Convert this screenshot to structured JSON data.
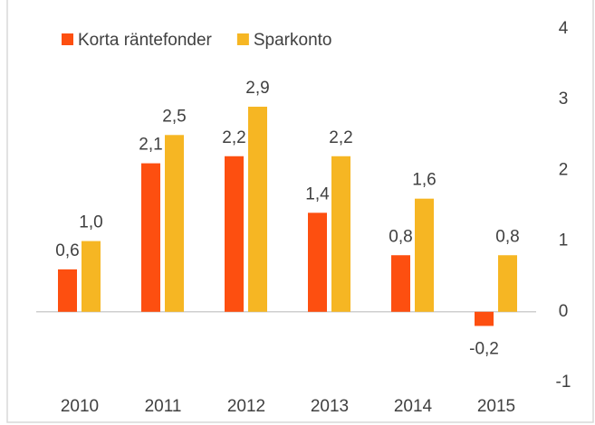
{
  "chart_data": {
    "type": "bar",
    "categories": [
      "2010",
      "2011",
      "2012",
      "2013",
      "2014",
      "2015"
    ],
    "series": [
      {
        "name": "Korta räntefonder",
        "color": "#fd4f10",
        "values": [
          0.6,
          2.1,
          2.2,
          1.4,
          0.8,
          -0.2
        ],
        "value_labels": [
          "0,6",
          "2,1",
          "2,2",
          "1,4",
          "0,8",
          "-0,2"
        ]
      },
      {
        "name": "Sparkonto",
        "color": "#f6b623",
        "values": [
          1.0,
          2.5,
          2.9,
          2.2,
          1.6,
          0.8
        ],
        "value_labels": [
          "1,0",
          "2,5",
          "2,9",
          "2,2",
          "1,6",
          "0,8"
        ]
      }
    ],
    "ylim": [
      -1,
      4
    ],
    "yticks": [
      -1,
      0,
      1,
      2,
      3,
      4
    ],
    "y_axis_side": "right",
    "legend": "top-left",
    "grid": false
  }
}
